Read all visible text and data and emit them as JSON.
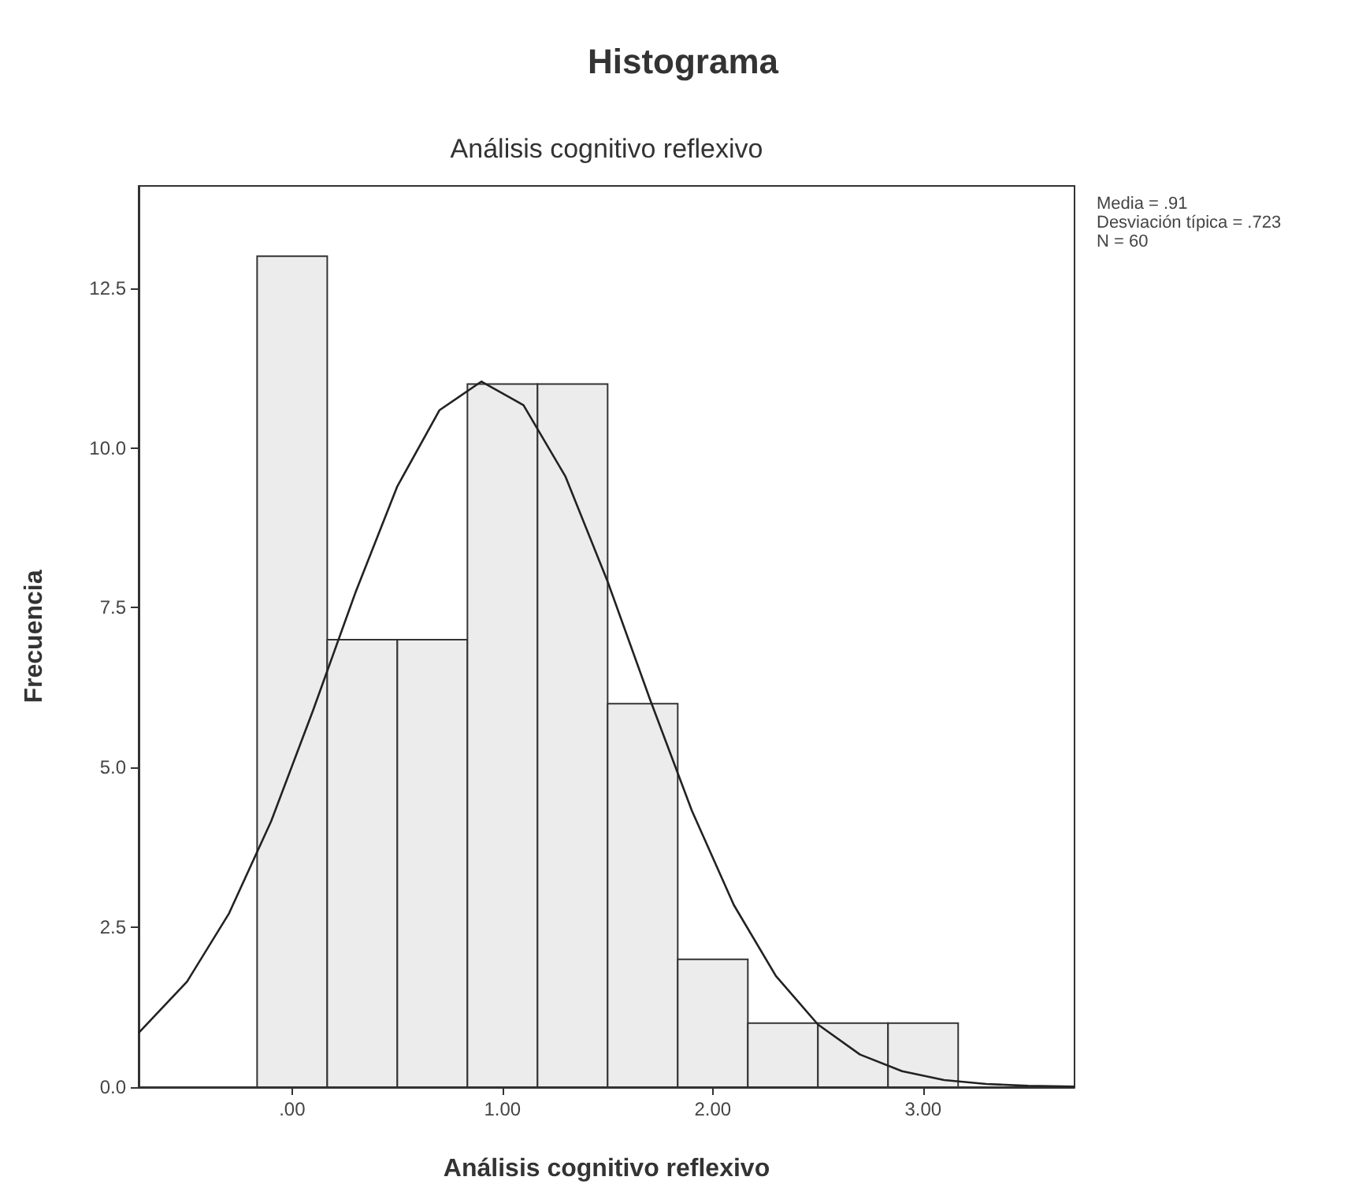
{
  "chart_data": {
    "type": "histogram",
    "title": "Histograma",
    "subtitle": "Análisis cognitivo reflexivo",
    "xlabel": "Análisis cognitivo reflexivo",
    "ylabel": "Frecuencia",
    "annotations": [
      "Media = .91",
      "Desviación típica = .723",
      "N = 60"
    ],
    "bins": [
      -0.1667,
      0.1667,
      0.5,
      0.8333,
      1.1667,
      1.5,
      1.8333,
      2.1667,
      2.5,
      2.8333,
      3.1667
    ],
    "values": [
      13,
      7,
      7,
      11,
      11,
      6,
      2,
      1,
      1,
      1
    ],
    "color": "#ececec",
    "series": [
      {
        "type": "line",
        "color": "#222222",
        "x": [
          -0.73,
          -0.5,
          -0.3,
          -0.1,
          0.1,
          0.3,
          0.5,
          0.7,
          0.9,
          1.1,
          1.3,
          1.5,
          1.7,
          1.9,
          2.1,
          2.3,
          2.5,
          2.7,
          2.9,
          3.1,
          3.3,
          3.5,
          3.72
        ],
        "values": [
          0.85,
          1.65,
          2.72,
          4.16,
          5.9,
          7.73,
          9.4,
          10.59,
          11.04,
          10.67,
          9.55,
          7.91,
          6.08,
          4.33,
          2.85,
          1.74,
          0.98,
          0.51,
          0.25,
          0.11,
          0.05,
          0.02,
          0.01
        ]
      }
    ],
    "xlim": [
      -0.73,
      3.72
    ],
    "ylim": [
      0,
      14.1
    ],
    "xticks": [
      {
        "value": 0,
        "label": ".00"
      },
      {
        "value": 1,
        "label": "1.00"
      },
      {
        "value": 2,
        "label": "2.00"
      },
      {
        "value": 3,
        "label": "3.00"
      }
    ],
    "yticks": [
      {
        "value": 0,
        "label": "0.0"
      },
      {
        "value": 2.5,
        "label": "2.5"
      },
      {
        "value": 5,
        "label": "5.0"
      },
      {
        "value": 7.5,
        "label": "7.5"
      },
      {
        "value": 10,
        "label": "10.0"
      },
      {
        "value": 12.5,
        "label": "12.5"
      }
    ],
    "grid": false,
    "legend": false
  }
}
